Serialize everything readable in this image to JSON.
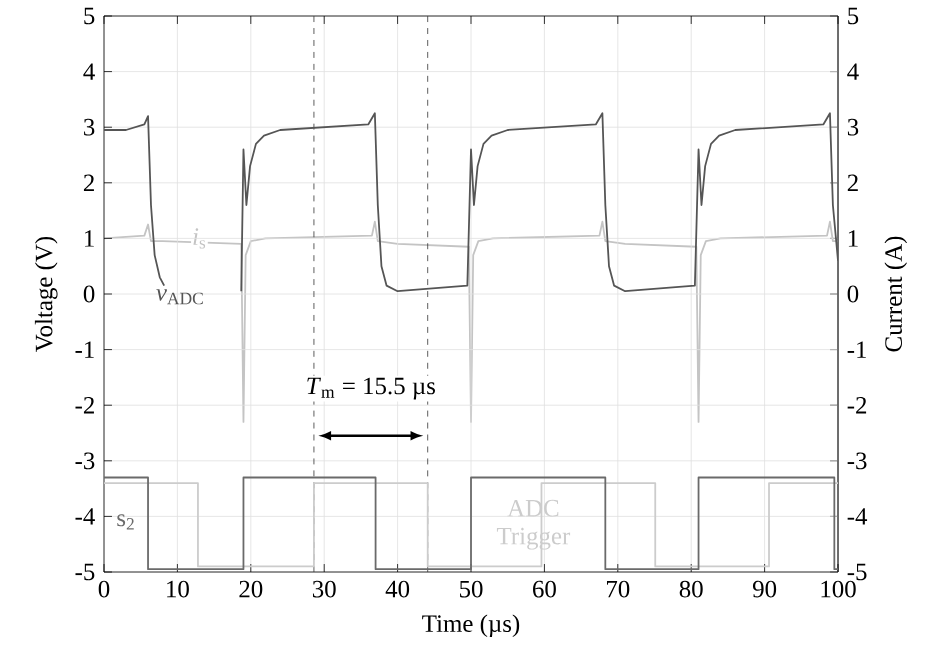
{
  "chart_data": {
    "type": "line",
    "xlabel": "Time (µs)",
    "ylabel": "Voltage (V)",
    "y2label": "Current (A)",
    "xlim": [
      0,
      100
    ],
    "xticks": [
      0,
      10,
      20,
      30,
      40,
      50,
      60,
      70,
      80,
      90,
      100
    ],
    "ylim": [
      -5,
      5
    ],
    "yticks": [
      -5,
      -4,
      -3,
      -2,
      -1,
      0,
      1,
      2,
      3,
      4,
      5
    ],
    "y2lim": [
      -5,
      5
    ],
    "y2ticks": [
      -5,
      -4,
      -3,
      -2,
      -1,
      0,
      1,
      2,
      3,
      4,
      5
    ],
    "grid": true,
    "series": [
      {
        "name": "*v*$_{ADC}$",
        "color": "#555555",
        "x": [
          0,
          3,
          5.5,
          6,
          6.4,
          6.9,
          7.6,
          8.2,
          8.6,
          18.5,
          18.7,
          19,
          19.4,
          19.9,
          20.7,
          21.8,
          24,
          36,
          36.9,
          37.3,
          37.8,
          38.5,
          40,
          49.5,
          50,
          50.4,
          50.9,
          51.7,
          52.8,
          55,
          67,
          67.9,
          68.3,
          68.8,
          69.5,
          71,
          80.5,
          81,
          81.4,
          81.9,
          82.7,
          83.8,
          86,
          98,
          98.9,
          99.3,
          100
        ],
        "values": [
          2.95,
          2.95,
          3.05,
          3.2,
          1.6,
          0.7,
          0.3,
          0.15,
          null,
          null,
          0.05,
          2.6,
          1.6,
          2.3,
          2.7,
          2.85,
          2.95,
          3.05,
          3.25,
          1.6,
          0.5,
          0.15,
          0.05,
          0.15,
          2.6,
          1.6,
          2.3,
          2.7,
          2.85,
          2.95,
          3.05,
          3.25,
          1.6,
          0.5,
          0.15,
          0.05,
          0.15,
          2.6,
          1.6,
          2.3,
          2.7,
          2.85,
          2.95,
          3.05,
          3.25,
          1.6,
          0.6
        ]
      },
      {
        "name": "*i*$_{s}$",
        "color": "#c4c4c4",
        "axis": "y2",
        "x": [
          0,
          5.5,
          6,
          6.4,
          8,
          18.7,
          19,
          19.3,
          20,
          22,
          36.5,
          36.9,
          37.3,
          40,
          49.7,
          50,
          50.3,
          51,
          53,
          67.5,
          67.9,
          68.3,
          71,
          80.7,
          81,
          81.3,
          82,
          84,
          98.5,
          98.9,
          99.3,
          100
        ],
        "values": [
          1.0,
          1.05,
          1.25,
          0.95,
          0.95,
          0.9,
          -2.3,
          0.7,
          0.95,
          1.0,
          1.05,
          1.3,
          0.95,
          0.9,
          0.85,
          -2.3,
          0.7,
          0.95,
          1.0,
          1.05,
          1.3,
          0.95,
          0.9,
          0.85,
          -2.3,
          0.7,
          0.95,
          1.0,
          1.05,
          1.3,
          0.95,
          0.95
        ]
      },
      {
        "name": "ADC Trigger",
        "color": "#cccccc",
        "x": [
          0,
          12.8,
          12.8,
          28.6,
          28.6,
          44.1,
          44.1,
          59.6,
          59.6,
          75.1,
          75.1,
          90.6,
          90.6,
          100
        ],
        "values": [
          -3.4,
          -3.4,
          -4.9,
          -4.9,
          -3.4,
          -3.4,
          -4.9,
          -4.9,
          -3.4,
          -3.4,
          -4.9,
          -4.9,
          -3.4,
          -3.4
        ]
      },
      {
        "name": "s$_{2}$",
        "color": "#6a6a6a",
        "x": [
          0,
          6,
          6,
          19,
          19,
          37,
          37,
          50,
          50,
          68.3,
          68.3,
          81,
          81,
          99.5,
          99.5,
          100
        ],
        "values": [
          -3.3,
          -3.3,
          -4.95,
          -4.95,
          -3.3,
          -3.3,
          -4.95,
          -4.95,
          -3.3,
          -3.3,
          -4.95,
          -4.95,
          -3.3,
          -3.3,
          -4.95,
          -4.95
        ]
      }
    ],
    "ref_lines": [
      {
        "axis": "x",
        "value": 28.6,
        "line_style": "dashed",
        "color": "#333333"
      },
      {
        "axis": "x",
        "value": 44.1,
        "line_style": "dashed",
        "color": "#333333"
      }
    ],
    "annotations": [
      "*T*$_{m}$ = 15.5 µs"
    ]
  }
}
